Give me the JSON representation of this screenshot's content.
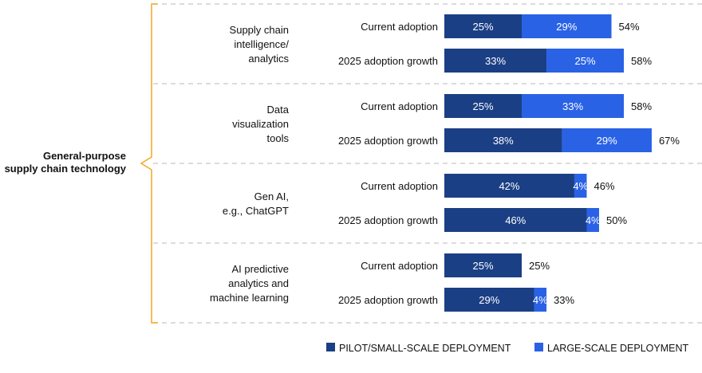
{
  "chart_data": {
    "type": "bar",
    "orientation": "horizontal",
    "stacked": true,
    "unit": "%",
    "xlim": [
      0,
      100
    ],
    "grid": false,
    "legend_placement": "bottom-right",
    "bracket_label": "General-purpose supply chain technology",
    "series": [
      {
        "name": "PILOT/SMALL-SCALE DEPLOYMENT",
        "color": "#1b3f85"
      },
      {
        "name": "LARGE-SCALE DEPLOYMENT",
        "color": "#2a62e6"
      }
    ],
    "groups": [
      {
        "label": "Supply chain\nintelligence/\nanalytics",
        "rows": [
          {
            "category": "Current adoption",
            "values": [
              25,
              29
            ],
            "total": 54
          },
          {
            "category": "2025 adoption growth",
            "values": [
              33,
              25
            ],
            "total": 58
          }
        ]
      },
      {
        "label": "Data\nvisualization\ntools",
        "rows": [
          {
            "category": "Current adoption",
            "values": [
              25,
              33
            ],
            "total": 58
          },
          {
            "category": "2025 adoption growth",
            "values": [
              38,
              29
            ],
            "total": 67
          }
        ]
      },
      {
        "label": "Gen AI,\ne.g., ChatGPT",
        "rows": [
          {
            "category": "Current adoption",
            "values": [
              42,
              4
            ],
            "total": 46
          },
          {
            "category": "2025 adoption growth",
            "values": [
              46,
              4
            ],
            "total": 50
          }
        ]
      },
      {
        "label": "AI predictive\nanalytics and\nmachine learning",
        "rows": [
          {
            "category": "Current adoption",
            "values": [
              25,
              0
            ],
            "total": 25
          },
          {
            "category": "2025 adoption growth",
            "values": [
              29,
              4
            ],
            "total": 33
          }
        ]
      }
    ],
    "accent_color": "#f5a623"
  }
}
